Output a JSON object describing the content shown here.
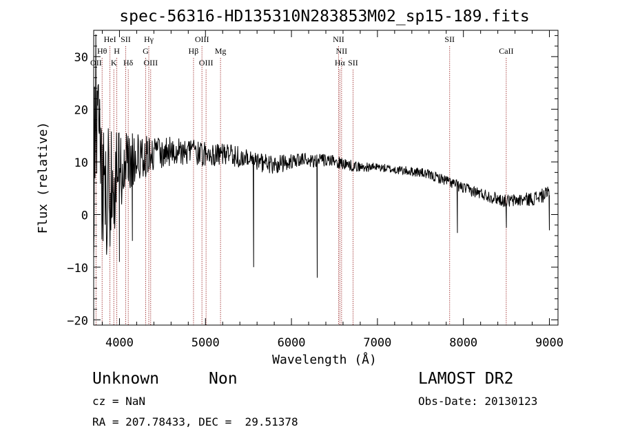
{
  "chart_data": {
    "type": "line",
    "title": "spec-56316-HD135310N283853M02_sp15-189.fits",
    "xlabel": "Wavelength (Å)",
    "ylabel": "Flux (relative)",
    "xlim": [
      3700,
      9100
    ],
    "ylim": [
      -21,
      35
    ],
    "xticks": [
      4000,
      5000,
      6000,
      7000,
      8000,
      9000
    ],
    "yticks": [
      -20,
      -10,
      0,
      10,
      20,
      30
    ],
    "line_color": "#000000",
    "marker_color": "#a03030",
    "continuum": [
      [
        3700,
        1
      ],
      [
        3720,
        24
      ],
      [
        3760,
        12
      ],
      [
        3800,
        6
      ],
      [
        3850,
        4
      ],
      [
        3900,
        6
      ],
      [
        3950,
        7
      ],
      [
        4000,
        8
      ],
      [
        4100,
        10
      ],
      [
        4200,
        11
      ],
      [
        4300,
        11
      ],
      [
        4400,
        11.5
      ],
      [
        4600,
        12
      ],
      [
        4800,
        12
      ],
      [
        5000,
        11.5
      ],
      [
        5200,
        11.5
      ],
      [
        5400,
        11
      ],
      [
        5600,
        10
      ],
      [
        5800,
        9.5
      ],
      [
        6000,
        10
      ],
      [
        6200,
        10.5
      ],
      [
        6500,
        10
      ],
      [
        6800,
        9
      ],
      [
        7000,
        9
      ],
      [
        7200,
        8.5
      ],
      [
        7500,
        8
      ],
      [
        7800,
        6.5
      ],
      [
        8000,
        5
      ],
      [
        8200,
        4
      ],
      [
        8500,
        2.5
      ],
      [
        8800,
        3
      ],
      [
        9000,
        4
      ]
    ],
    "noise": [
      [
        3700,
        13
      ],
      [
        3900,
        12
      ],
      [
        4000,
        8
      ],
      [
        4200,
        5
      ],
      [
        4400,
        3
      ],
      [
        5000,
        2.4
      ],
      [
        5500,
        2
      ],
      [
        6000,
        1.6
      ],
      [
        6600,
        1.1
      ],
      [
        7000,
        0.8
      ],
      [
        8000,
        1.1
      ],
      [
        9000,
        1.4
      ]
    ],
    "features": [
      [
        4000,
        -9
      ],
      [
        4100,
        15
      ],
      [
        4150,
        -5
      ],
      [
        5560,
        -10
      ],
      [
        6300,
        -12
      ],
      [
        6300,
        4
      ],
      [
        7930,
        -3.5
      ],
      [
        8500,
        -2.5
      ],
      [
        9000,
        -3
      ]
    ],
    "lines": [
      {
        "label": "OII",
        "x": 3727,
        "row": 3
      },
      {
        "label": "Hθ",
        "x": 3798,
        "row": 2
      },
      {
        "label": "HeI",
        "x": 3889,
        "row": 1
      },
      {
        "label": "K",
        "x": 3934,
        "row": 3
      },
      {
        "label": "H",
        "x": 3969,
        "row": 2
      },
      {
        "label": "SII",
        "x": 4072,
        "row": 1
      },
      {
        "label": "Hδ",
        "x": 4102,
        "row": 3
      },
      {
        "label": "Hγ",
        "x": 4341,
        "row": 1
      },
      {
        "label": "G",
        "x": 4305,
        "row": 2
      },
      {
        "label": "OIII",
        "x": 4363,
        "row": 3
      },
      {
        "label": "Hβ",
        "x": 4861,
        "row": 2
      },
      {
        "label": "OIII",
        "x": 4959,
        "row": 1
      },
      {
        "label": "OIII",
        "x": 5007,
        "row": 3
      },
      {
        "label": "Mg",
        "x": 5175,
        "row": 2
      },
      {
        "label": "NII",
        "x": 6548,
        "row": 1
      },
      {
        "label": "NII",
        "x": 6583,
        "row": 2
      },
      {
        "label": "Hα",
        "x": 6563,
        "row": 3
      },
      {
        "label": "SII",
        "x": 6716,
        "row": 3
      },
      {
        "label": "SII",
        "x": 7840,
        "row": 1
      },
      {
        "label": "CaII",
        "x": 8498,
        "row": 2
      }
    ]
  },
  "info": {
    "classification": "Unknown",
    "subclass": "Non",
    "survey": "LAMOST DR2",
    "redshift": "cz = NaN",
    "obs_date": "Obs-Date: 20130123",
    "coords": "RA = 207.78433, DEC =  29.51378"
  }
}
